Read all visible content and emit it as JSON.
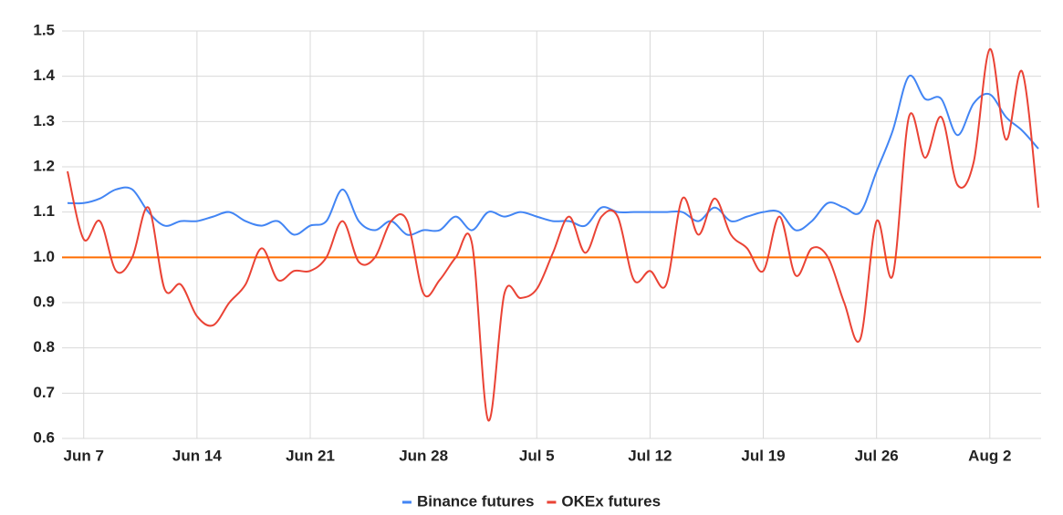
{
  "chart_data": {
    "type": "line",
    "categories": [
      null,
      "Jun 7",
      null,
      null,
      null,
      null,
      null,
      null,
      "Jun 14",
      null,
      null,
      null,
      null,
      null,
      null,
      "Jun 21",
      null,
      null,
      null,
      null,
      null,
      null,
      "Jun 28",
      null,
      null,
      null,
      null,
      null,
      null,
      "Jul 5",
      null,
      null,
      null,
      null,
      null,
      null,
      "Jul 12",
      null,
      null,
      null,
      null,
      null,
      null,
      "Jul 19",
      null,
      null,
      null,
      null,
      null,
      null,
      "Jul 26",
      null,
      null,
      null,
      null,
      null,
      null,
      "Aug 2",
      null,
      null,
      null
    ],
    "series": [
      {
        "name": "Binance futures",
        "color": "#4285f4",
        "values": [
          1.12,
          1.12,
          1.13,
          1.15,
          1.15,
          1.1,
          1.07,
          1.08,
          1.08,
          1.09,
          1.1,
          1.08,
          1.07,
          1.08,
          1.05,
          1.07,
          1.08,
          1.15,
          1.08,
          1.06,
          1.08,
          1.05,
          1.06,
          1.06,
          1.09,
          1.06,
          1.1,
          1.09,
          1.1,
          1.09,
          1.08,
          1.08,
          1.07,
          1.11,
          1.1,
          1.1,
          1.1,
          1.1,
          1.1,
          1.08,
          1.11,
          1.08,
          1.09,
          1.1,
          1.1,
          1.06,
          1.08,
          1.12,
          1.11,
          1.1,
          1.19,
          1.28,
          1.4,
          1.35,
          1.35,
          1.27,
          1.34,
          1.36,
          1.31,
          1.28,
          1.24
        ]
      },
      {
        "name": "OKEx futures",
        "color": "#ea4335",
        "values": [
          1.19,
          1.04,
          1.08,
          0.97,
          1.0,
          1.11,
          0.93,
          0.94,
          0.87,
          0.85,
          0.9,
          0.94,
          1.02,
          0.95,
          0.97,
          0.97,
          1.0,
          1.08,
          0.99,
          1.0,
          1.08,
          1.08,
          0.92,
          0.95,
          1.0,
          1.03,
          0.64,
          0.92,
          0.91,
          0.93,
          1.01,
          1.09,
          1.01,
          1.09,
          1.09,
          0.95,
          0.97,
          0.94,
          1.13,
          1.05,
          1.13,
          1.05,
          1.02,
          0.97,
          1.09,
          0.96,
          1.02,
          1.0,
          0.9,
          0.82,
          1.08,
          0.96,
          1.31,
          1.22,
          1.31,
          1.16,
          1.21,
          1.46,
          1.26,
          1.41,
          1.11
        ]
      }
    ],
    "reference_line": {
      "value": 1,
      "color": "#ff6d01"
    },
    "ylim": [
      0.6,
      1.5
    ],
    "yticks": [
      0.6,
      0.7,
      0.8,
      0.9,
      {
        "value": 1,
        "label": "1.0"
      },
      1.1,
      1.2,
      1.3,
      1.4,
      1.5
    ],
    "grid": true,
    "legend": "bottom"
  }
}
